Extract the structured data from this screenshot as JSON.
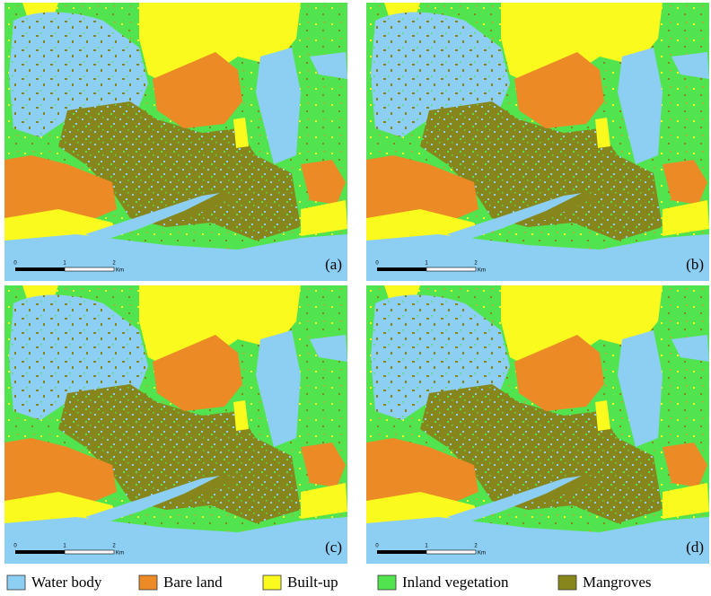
{
  "panels": [
    {
      "label": "(a)"
    },
    {
      "label": "(b)"
    },
    {
      "label": "(c)"
    },
    {
      "label": "(d)"
    }
  ],
  "scale_bar": {
    "labels": [
      "0",
      "1",
      "2"
    ],
    "unit": "Km"
  },
  "legend": [
    {
      "name": "Water body",
      "color": "#8ccff2"
    },
    {
      "name": "Bare land",
      "color": "#ec8a25"
    },
    {
      "name": "Built-up",
      "color": "#fafa1e"
    },
    {
      "name": "Inland vegetation",
      "color": "#52e44e"
    },
    {
      "name": "Mangroves",
      "color": "#86861c"
    }
  ]
}
